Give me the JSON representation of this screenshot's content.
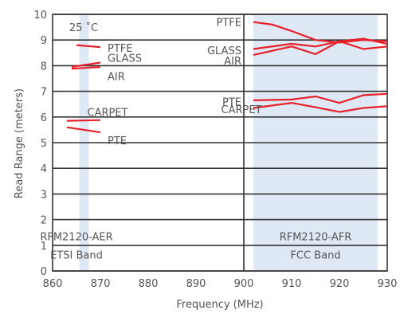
{
  "chart_data": {
    "type": "line",
    "xlabel": "Frequency (MHz)",
    "ylabel": "Read Range (meters)",
    "xlim": [
      860,
      930
    ],
    "ylim": [
      0,
      10
    ],
    "xticks": [
      "860",
      "870",
      "880",
      "890",
      "900",
      "910",
      "920",
      "930"
    ],
    "yticks": [
      "0",
      "1",
      "2",
      "3",
      "4",
      "5",
      "6",
      "7",
      "8",
      "9",
      "10"
    ],
    "grid": "horizontal",
    "bands": [
      {
        "x0": 865.6,
        "x1": 867.6,
        "label1": "RFM2120-AER",
        "label2": "ETSI Band"
      },
      {
        "x0": 902,
        "x1": 928,
        "label1": "RFM2120-AFR",
        "label2": "FCC Band"
      }
    ],
    "annotations": [
      {
        "text": "25 ˚C",
        "x": 866.5,
        "y": 9.5
      },
      {
        "text": "PTFE",
        "x": 871.5,
        "y": 8.7
      },
      {
        "text": "GLASS",
        "x": 871.5,
        "y": 8.3
      },
      {
        "text": "AIR",
        "x": 871.5,
        "y": 7.6
      },
      {
        "text": "CARPET",
        "x": 871.5,
        "y": 6.2
      },
      {
        "text": "PTE",
        "x": 871.5,
        "y": 5.1
      },
      {
        "text": "PTFE",
        "x": 899.5,
        "y": 9.7
      },
      {
        "text": "GLASS",
        "x": 899.5,
        "y": 8.6
      },
      {
        "text": "AIR",
        "x": 899.5,
        "y": 8.2
      },
      {
        "text": "PTE",
        "x": 899.5,
        "y": 6.6
      },
      {
        "text": "CARPET",
        "x": 899.5,
        "y": 6.3
      }
    ],
    "series": [
      {
        "group": "etsi",
        "x": [
          865,
          870
        ],
        "y": [
          8.8,
          8.72
        ]
      },
      {
        "group": "etsi",
        "x": [
          864,
          870
        ],
        "y": [
          7.95,
          8.12
        ]
      },
      {
        "group": "etsi",
        "x": [
          864,
          870
        ],
        "y": [
          7.88,
          7.95
        ]
      },
      {
        "group": "etsi",
        "x": [
          863,
          870
        ],
        "y": [
          5.85,
          5.88
        ]
      },
      {
        "group": "etsi",
        "x": [
          863,
          870
        ],
        "y": [
          5.6,
          5.4
        ]
      },
      {
        "group": "fcc",
        "x": [
          902,
          906,
          910,
          915,
          920,
          925,
          930
        ],
        "y": [
          9.7,
          9.6,
          9.35,
          9.0,
          8.9,
          9.0,
          8.95
        ]
      },
      {
        "group": "fcc",
        "x": [
          902,
          910,
          915,
          920,
          925,
          930
        ],
        "y": [
          8.65,
          8.85,
          8.75,
          8.95,
          8.65,
          8.75
        ]
      },
      {
        "group": "fcc",
        "x": [
          902,
          910,
          915,
          920,
          925,
          930
        ],
        "y": [
          8.42,
          8.75,
          8.45,
          8.95,
          9.05,
          8.85
        ]
      },
      {
        "group": "fcc",
        "x": [
          902,
          910,
          915,
          920,
          925,
          930
        ],
        "y": [
          6.65,
          6.68,
          6.8,
          6.55,
          6.85,
          6.9
        ]
      },
      {
        "group": "fcc",
        "x": [
          902,
          910,
          915,
          920,
          925,
          930
        ],
        "y": [
          6.35,
          6.55,
          6.38,
          6.2,
          6.35,
          6.42
        ]
      }
    ],
    "colors": {
      "line": "#e8202a",
      "band": "#dfe9f6",
      "grid": "#333333",
      "text": "#555555"
    }
  }
}
